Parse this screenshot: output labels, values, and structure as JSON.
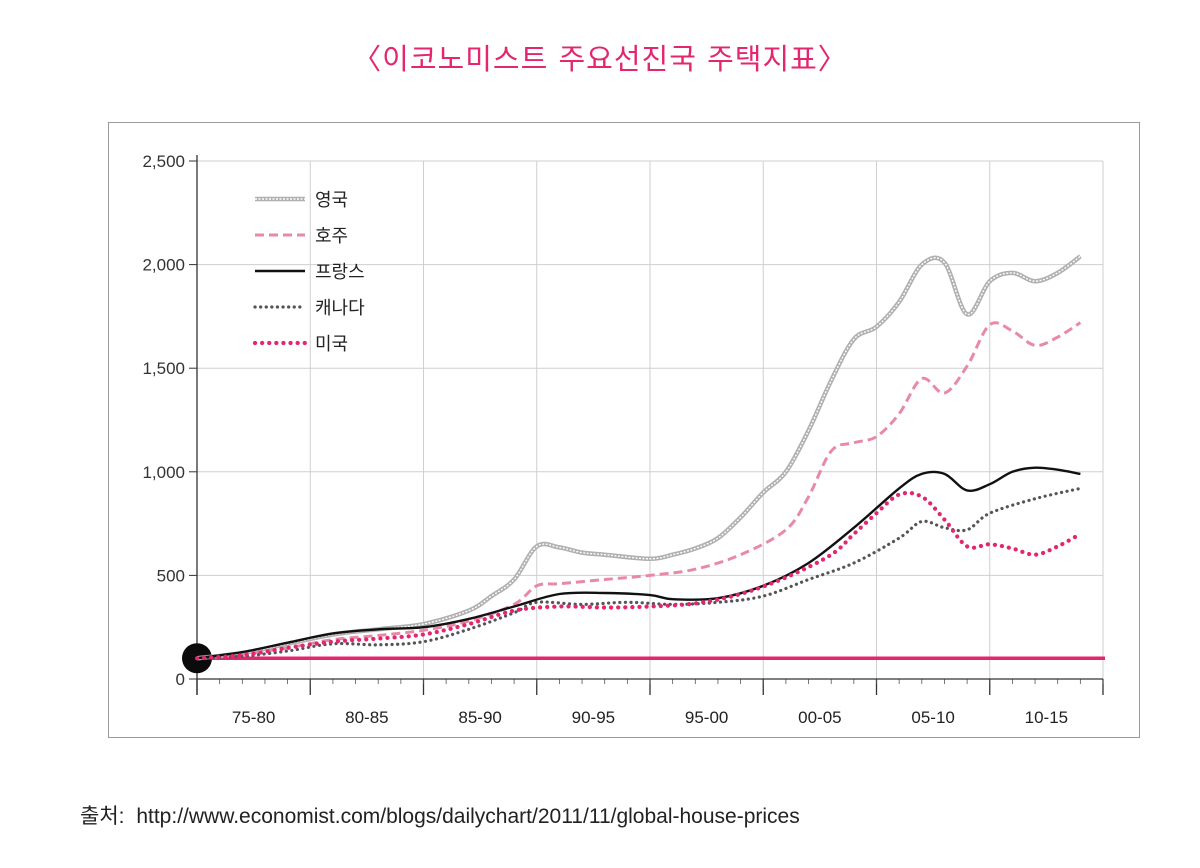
{
  "title": "〈이코노미스트 주요선진국 주택지표〉",
  "source": {
    "label": "출처:",
    "url": "http://www.economist.com/blogs/dailychart/2011/11/global-house-prices"
  },
  "chart_data": {
    "type": "line",
    "x_tick_labels": [
      "75-80",
      "80-85",
      "85-90",
      "90-95",
      "95-00",
      "00-05",
      "05-10",
      "10-15"
    ],
    "y_tick_labels": [
      "0",
      "500",
      "1,000",
      "1,500",
      "2,000",
      "2,500"
    ],
    "ylim": [
      0,
      2500
    ],
    "xlim": [
      1975,
      2015
    ],
    "baseline": 100,
    "grid": true,
    "legend_position": "top-left",
    "series": [
      {
        "name": "영국",
        "color": "#b0b0b0",
        "style": "double",
        "points": [
          [
            1975,
            100
          ],
          [
            1977,
            125
          ],
          [
            1979,
            170
          ],
          [
            1981,
            215
          ],
          [
            1983,
            240
          ],
          [
            1985,
            265
          ],
          [
            1987,
            330
          ],
          [
            1988,
            400
          ],
          [
            1989,
            480
          ],
          [
            1990,
            640
          ],
          [
            1991,
            635
          ],
          [
            1992,
            610
          ],
          [
            1993,
            600
          ],
          [
            1995,
            580
          ],
          [
            1996,
            600
          ],
          [
            1997,
            630
          ],
          [
            1998,
            680
          ],
          [
            1999,
            780
          ],
          [
            2000,
            900
          ],
          [
            2001,
            1000
          ],
          [
            2002,
            1200
          ],
          [
            2003,
            1440
          ],
          [
            2004,
            1640
          ],
          [
            2005,
            1700
          ],
          [
            2006,
            1820
          ],
          [
            2007,
            2000
          ],
          [
            2008,
            2010
          ],
          [
            2009,
            1760
          ],
          [
            2010,
            1920
          ],
          [
            2011,
            1960
          ],
          [
            2012,
            1920
          ],
          [
            2013,
            1960
          ],
          [
            2014,
            2040
          ]
        ]
      },
      {
        "name": "호주",
        "color": "#e88aa6",
        "style": "dash",
        "points": [
          [
            1975,
            100
          ],
          [
            1977,
            120
          ],
          [
            1979,
            150
          ],
          [
            1981,
            190
          ],
          [
            1983,
            210
          ],
          [
            1985,
            235
          ],
          [
            1987,
            280
          ],
          [
            1989,
            360
          ],
          [
            1990,
            450
          ],
          [
            1991,
            460
          ],
          [
            1993,
            480
          ],
          [
            1995,
            500
          ],
          [
            1997,
            530
          ],
          [
            1999,
            600
          ],
          [
            2001,
            720
          ],
          [
            2002,
            880
          ],
          [
            2003,
            1100
          ],
          [
            2004,
            1140
          ],
          [
            2005,
            1170
          ],
          [
            2006,
            1280
          ],
          [
            2007,
            1450
          ],
          [
            2008,
            1380
          ],
          [
            2009,
            1510
          ],
          [
            2010,
            1710
          ],
          [
            2011,
            1680
          ],
          [
            2012,
            1610
          ],
          [
            2013,
            1650
          ],
          [
            2014,
            1720
          ]
        ]
      },
      {
        "name": "프랑스",
        "color": "#111111",
        "style": "solid",
        "points": [
          [
            1975,
            100
          ],
          [
            1977,
            130
          ],
          [
            1979,
            175
          ],
          [
            1981,
            220
          ],
          [
            1983,
            240
          ],
          [
            1985,
            250
          ],
          [
            1987,
            290
          ],
          [
            1989,
            350
          ],
          [
            1991,
            410
          ],
          [
            1993,
            415
          ],
          [
            1995,
            405
          ],
          [
            1996,
            385
          ],
          [
            1998,
            390
          ],
          [
            2000,
            450
          ],
          [
            2002,
            560
          ],
          [
            2004,
            730
          ],
          [
            2006,
            920
          ],
          [
            2007,
            990
          ],
          [
            2008,
            990
          ],
          [
            2009,
            910
          ],
          [
            2010,
            940
          ],
          [
            2011,
            1000
          ],
          [
            2012,
            1020
          ],
          [
            2013,
            1010
          ],
          [
            2014,
            990
          ]
        ]
      },
      {
        "name": "캐나다",
        "color": "#555555",
        "style": "dot",
        "points": [
          [
            1975,
            100
          ],
          [
            1977,
            110
          ],
          [
            1979,
            135
          ],
          [
            1981,
            170
          ],
          [
            1983,
            165
          ],
          [
            1985,
            180
          ],
          [
            1987,
            240
          ],
          [
            1989,
            320
          ],
          [
            1990,
            370
          ],
          [
            1992,
            360
          ],
          [
            1994,
            370
          ],
          [
            1996,
            360
          ],
          [
            1998,
            370
          ],
          [
            2000,
            400
          ],
          [
            2002,
            480
          ],
          [
            2004,
            560
          ],
          [
            2006,
            680
          ],
          [
            2007,
            760
          ],
          [
            2008,
            730
          ],
          [
            2009,
            720
          ],
          [
            2010,
            800
          ],
          [
            2012,
            870
          ],
          [
            2014,
            920
          ]
        ]
      },
      {
        "name": "미국",
        "color": "#e3266f",
        "style": "dot-large",
        "points": [
          [
            1975,
            100
          ],
          [
            1977,
            115
          ],
          [
            1979,
            150
          ],
          [
            1981,
            180
          ],
          [
            1983,
            195
          ],
          [
            1985,
            215
          ],
          [
            1987,
            265
          ],
          [
            1989,
            330
          ],
          [
            1991,
            350
          ],
          [
            1993,
            345
          ],
          [
            1995,
            350
          ],
          [
            1997,
            365
          ],
          [
            1999,
            410
          ],
          [
            2001,
            490
          ],
          [
            2003,
            600
          ],
          [
            2004,
            700
          ],
          [
            2005,
            800
          ],
          [
            2006,
            890
          ],
          [
            2007,
            880
          ],
          [
            2008,
            770
          ],
          [
            2009,
            640
          ],
          [
            2010,
            650
          ],
          [
            2011,
            630
          ],
          [
            2012,
            600
          ],
          [
            2013,
            640
          ],
          [
            2014,
            700
          ]
        ]
      }
    ]
  }
}
